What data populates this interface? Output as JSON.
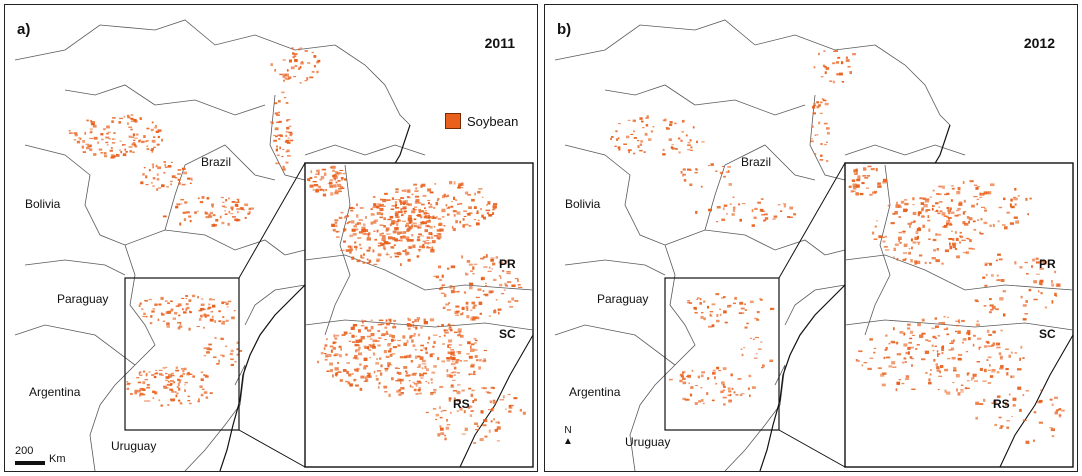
{
  "accent_color": "#e8601c",
  "border_color": "#5a5a5a",
  "legend": {
    "label": "Soybean",
    "color": "#e8601c"
  },
  "scale": {
    "value": "200",
    "unit": "Km"
  },
  "north_label": "N",
  "panels": [
    {
      "letter": "a)",
      "year": "2011",
      "countries": [
        "Brazil",
        "Bolivia",
        "Paraguay",
        "Argentina",
        "Uruguay"
      ],
      "states": [
        "PR",
        "SC",
        "RS"
      ],
      "soy_intensity": 1.0
    },
    {
      "letter": "b)",
      "year": "2012",
      "countries": [
        "Brazil",
        "Bolivia",
        "Paraguay",
        "Argentina",
        "Uruguay"
      ],
      "states": [
        "PR",
        "SC",
        "RS"
      ],
      "soy_intensity": 0.55
    }
  ]
}
